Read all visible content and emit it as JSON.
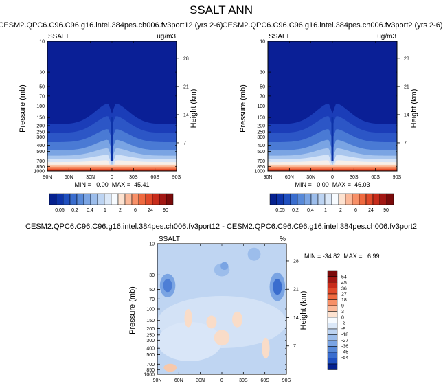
{
  "page_title": "SSALT ANN",
  "colors": {
    "zero": "#f7fbff",
    "positive": [
      "#fde2d0",
      "#fbb99a",
      "#f79068",
      "#ef6a40",
      "#e04a2a",
      "#c72c1b",
      "#a21713",
      "#7a0a0a"
    ],
    "negative": [
      "#dbe8f8",
      "#bdd4f2",
      "#9cbdeb",
      "#7aa4e3",
      "#5889d8",
      "#3a6dce",
      "#1f4fbf",
      "#0d33a8",
      "#05218f"
    ],
    "deep_blue": "#0a1f96"
  },
  "chart_data": [
    {
      "type": "heatmap",
      "panel": "top-left",
      "title": "CESM2.QPC6.C96.C96.g16.intel.384pes.ch006.fv3port12 (yrs 2-6)",
      "left_label": "SSALT",
      "right_label": "ug/m3",
      "ylabel": "Pressure (mb)",
      "ylabel_right": "Height (km)",
      "x_ticks": [
        "90N",
        "60N",
        "30N",
        "0",
        "30S",
        "60S",
        "90S"
      ],
      "y_ticks": [
        "10",
        "30",
        "50",
        "70",
        "100",
        "150",
        "200",
        "250",
        "300",
        "400",
        "500",
        "700",
        "850",
        "1000"
      ],
      "y_right_ticks": [
        "28",
        "21",
        "14",
        "7"
      ],
      "stats": {
        "min": "0.00",
        "max": "45.41"
      },
      "stats_text": "MIN =   0.00  MAX =  45.41",
      "colorbar": {
        "orientation": "horizontal",
        "labels": [
          "0.05",
          "0.2",
          "0.4",
          "1",
          "2",
          "6",
          "24",
          "90"
        ]
      }
    },
    {
      "type": "heatmap",
      "panel": "top-right",
      "title": "CESM2.QPC6.C96.C96.g16.intel.384pes.ch006.fv3port2 (yrs 2-6)",
      "left_label": "SSALT",
      "right_label": "ug/m3",
      "ylabel": "Pressure (mb)",
      "ylabel_right": "Height (km)",
      "x_ticks": [
        "90N",
        "60N",
        "30N",
        "0",
        "30S",
        "60S",
        "90S"
      ],
      "y_ticks": [
        "10",
        "30",
        "50",
        "70",
        "100",
        "150",
        "200",
        "250",
        "300",
        "400",
        "500",
        "700",
        "850",
        "1000"
      ],
      "y_right_ticks": [
        "28",
        "21",
        "14",
        "7"
      ],
      "stats": {
        "min": "0.00",
        "max": "46.03"
      },
      "stats_text": "MIN =   0.00  MAX =  46.03",
      "colorbar": {
        "orientation": "horizontal",
        "labels": [
          "0.05",
          "0.2",
          "0.4",
          "1",
          "2",
          "6",
          "24",
          "90"
        ]
      }
    },
    {
      "type": "heatmap",
      "panel": "bottom",
      "title": "CESM2.QPC6.C96.C96.g16.intel.384pes.ch006.fv3port12 - CESM2.QPC6.C96.C96.g16.intel.384pes.ch006.fv3port2",
      "left_label": "SSALT",
      "right_label": "%",
      "ylabel": "Pressure (mb)",
      "ylabel_right": "Height (km)",
      "x_ticks": [
        "90N",
        "60N",
        "30N",
        "0",
        "30S",
        "60S",
        "90S"
      ],
      "y_ticks": [
        "10",
        "30",
        "50",
        "70",
        "100",
        "150",
        "200",
        "250",
        "300",
        "400",
        "500",
        "700",
        "850",
        "1000"
      ],
      "y_right_ticks": [
        "28",
        "21",
        "14",
        "7"
      ],
      "stats": {
        "min": "-34.82",
        "max": "6.99"
      },
      "stats_text": "MIN = -34.82  MAX =   6.99",
      "colorbar": {
        "orientation": "vertical",
        "labels": [
          "54",
          "45",
          "36",
          "27",
          "18",
          "9",
          "3",
          "0",
          "-3",
          "-9",
          "-18",
          "-27",
          "-36",
          "-45",
          "-54"
        ]
      }
    }
  ]
}
